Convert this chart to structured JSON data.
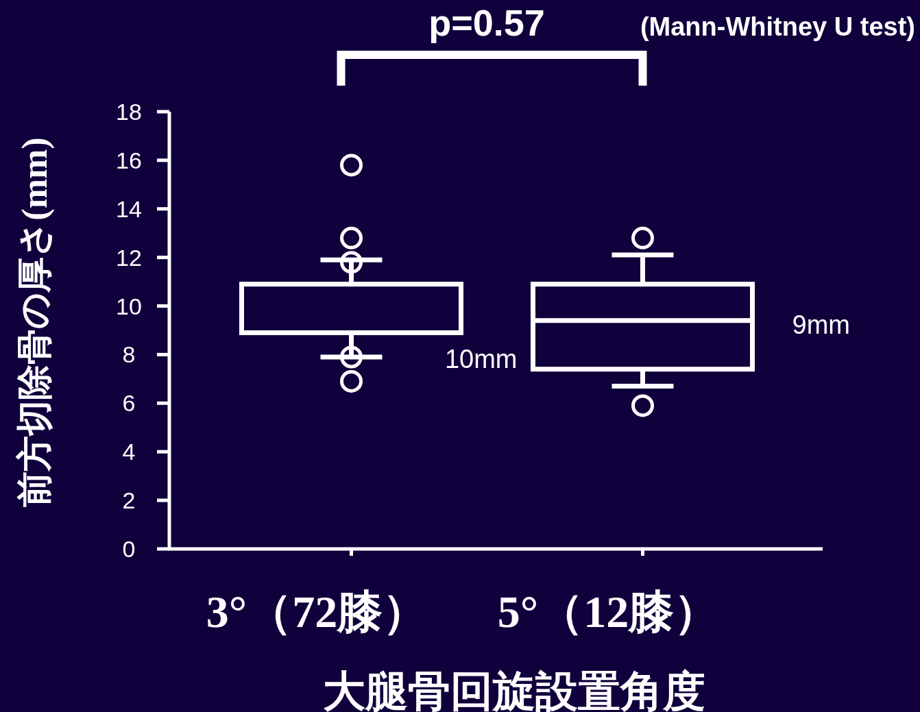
{
  "chart_data": {
    "type": "box",
    "xlabel": "大腿骨回旋設置角度",
    "ylabel": "前方切除骨の厚さ(mm)",
    "categories": [
      "3°（72膝）",
      "5°（12膝）"
    ],
    "boxes": [
      {
        "low": 7.9,
        "q1": 8.9,
        "median": null,
        "q3": 10.9,
        "high": 11.9,
        "outliers": [
          15.8,
          12.8,
          11.8,
          7.9,
          6.9
        ]
      },
      {
        "low": 6.7,
        "q1": 7.4,
        "median": 9.4,
        "q3": 10.9,
        "high": 12.1,
        "outliers": [
          12.8,
          5.9
        ]
      }
    ],
    "color": "#ffffff",
    "ylim": [
      0,
      18
    ],
    "yticks": [
      0,
      2,
      4,
      6,
      8,
      10,
      12,
      14,
      16,
      18
    ],
    "grid": false,
    "annotations": [
      "p=0.57",
      "(Mann-Whitney U test)",
      "10mm",
      "9mm"
    ]
  }
}
